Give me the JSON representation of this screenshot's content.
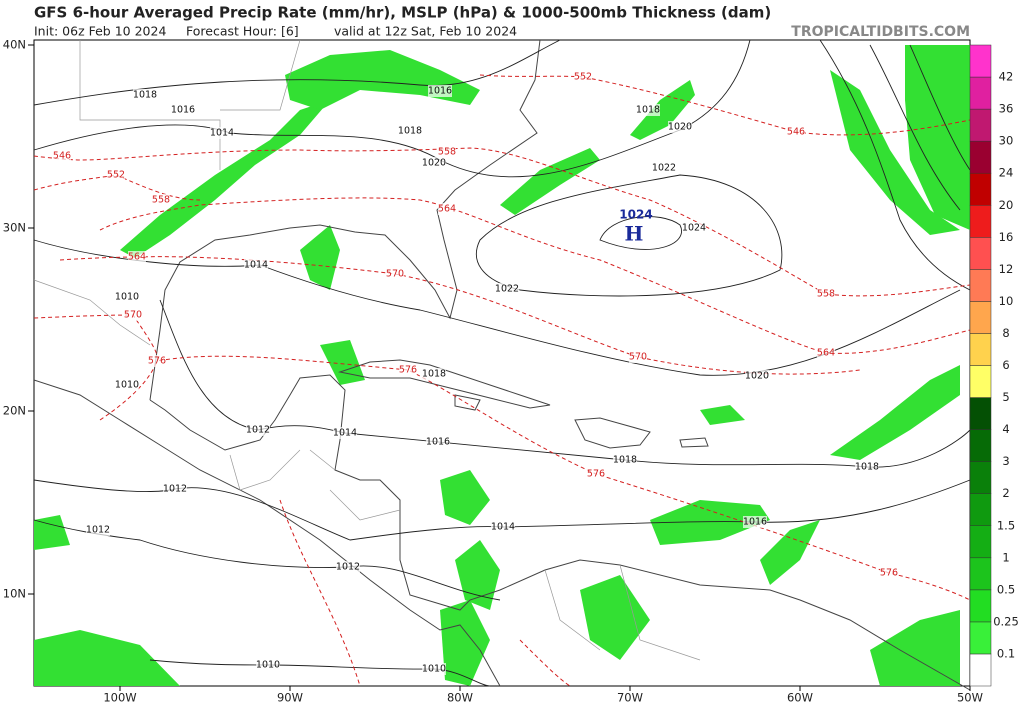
{
  "header": {
    "title": "GFS 6-hour Averaged Precip Rate (mm/hr), MSLP (hPa) & 1000-500mb Thickness (dam)",
    "init": "Init: 06z Feb 10 2024",
    "forecast_hour": "Forecast Hour: [6]",
    "valid": "valid at 12z Sat, Feb 10 2024",
    "site": "TROPICALTIDBITS.COM"
  },
  "map": {
    "lat_labels": [
      "40N",
      "30N",
      "20N",
      "10N"
    ],
    "lon_labels": [
      "100W",
      "90W",
      "80W",
      "70W",
      "60W",
      "50W"
    ],
    "high": {
      "symbol": "H",
      "pressure": 1024
    },
    "isobar_labels": [
      1018,
      1016,
      1014,
      1016,
      1018,
      1020,
      1018,
      1020,
      1022,
      1024,
      1014,
      1022,
      1010,
      1010,
      1018,
      1020,
      1012,
      1014,
      1016,
      1018,
      1018,
      1012,
      1014,
      1016,
      1012,
      1012,
      1010,
      1010
    ],
    "thickness_labels": [
      552,
      546,
      546,
      552,
      558,
      558,
      564,
      564,
      570,
      558,
      570,
      576,
      576,
      564,
      570,
      576,
      576
    ]
  },
  "colorbar": {
    "levels": [
      0.1,
      0.25,
      0.5,
      1,
      1.5,
      2,
      3,
      4,
      5,
      6,
      8,
      10,
      12,
      16,
      20,
      24,
      30,
      36,
      42
    ],
    "colors": [
      "#ffffff",
      "#39f039",
      "#22dd22",
      "#1cc41c",
      "#14ae14",
      "#0f9a0f",
      "#0a800a",
      "#066b06",
      "#045004",
      "#ffff66",
      "#ffd24d",
      "#ffa64d",
      "#ff7a55",
      "#ff5050",
      "#ee1c1c",
      "#c00000",
      "#9a0030",
      "#c01870",
      "#e020a0",
      "#ff33cc"
    ]
  }
}
